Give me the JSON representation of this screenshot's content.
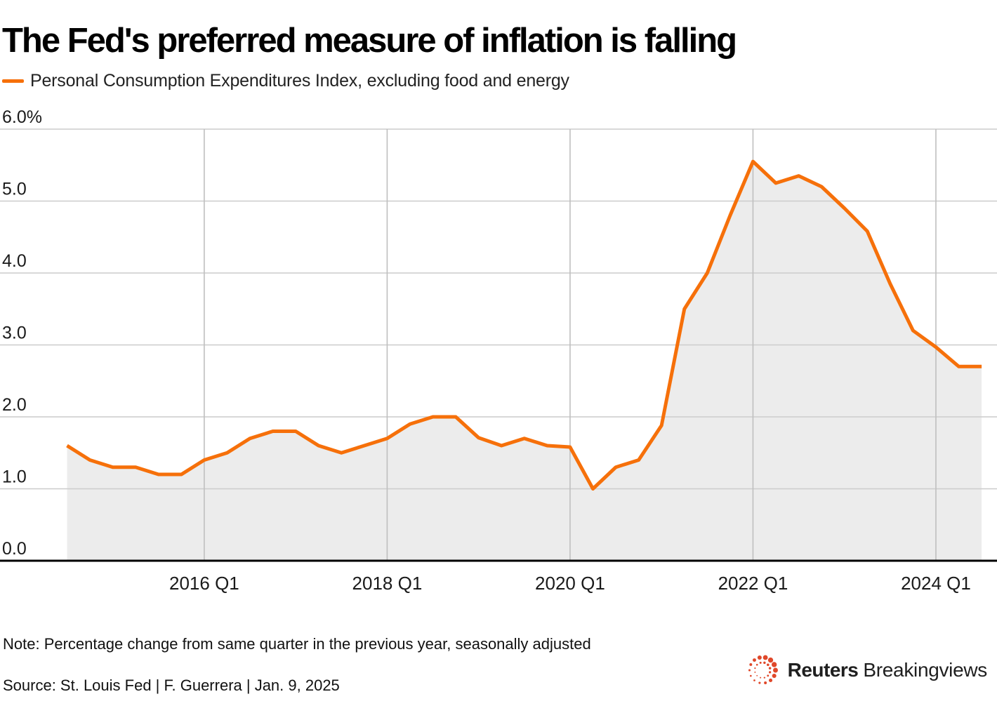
{
  "header": {
    "title": "The Fed's preferred measure of inflation is falling"
  },
  "legend": {
    "label": "Personal Consumption Expenditures Index, excluding food and energy",
    "swatch_color": "#F6700A"
  },
  "chart_data": {
    "type": "line",
    "title": "The Fed's preferred measure of inflation is falling",
    "series_name": "Personal Consumption Expenditures Index, excluding food and energy",
    "x": [
      "2014 Q3",
      "2014 Q4",
      "2015 Q1",
      "2015 Q2",
      "2015 Q3",
      "2015 Q4",
      "2016 Q1",
      "2016 Q2",
      "2016 Q3",
      "2016 Q4",
      "2017 Q1",
      "2017 Q2",
      "2017 Q3",
      "2017 Q4",
      "2018 Q1",
      "2018 Q2",
      "2018 Q3",
      "2018 Q4",
      "2019 Q1",
      "2019 Q2",
      "2019 Q3",
      "2019 Q4",
      "2020 Q1",
      "2020 Q2",
      "2020 Q3",
      "2020 Q4",
      "2021 Q1",
      "2021 Q2",
      "2021 Q3",
      "2021 Q4",
      "2022 Q1",
      "2022 Q2",
      "2022 Q3",
      "2022 Q4",
      "2023 Q1",
      "2023 Q2",
      "2023 Q3",
      "2023 Q4",
      "2024 Q1",
      "2024 Q2",
      "2024 Q3"
    ],
    "values": [
      1.6,
      1.4,
      1.3,
      1.3,
      1.2,
      1.2,
      1.4,
      1.5,
      1.7,
      1.8,
      1.8,
      1.6,
      1.5,
      1.6,
      1.7,
      1.9,
      2.0,
      2.0,
      1.71,
      1.6,
      1.7,
      1.6,
      1.58,
      1.0,
      1.3,
      1.4,
      1.88,
      3.5,
      4.0,
      4.8,
      5.55,
      5.25,
      5.35,
      5.2,
      4.9,
      4.58,
      3.85,
      3.2,
      2.97,
      2.7,
      2.7
    ],
    "ylim": [
      0,
      6
    ],
    "xlabel": "",
    "ylabel": "",
    "unit": "%",
    "grid": true,
    "legend_position": "top-left",
    "y_ticks": [
      {
        "label": "6.0%",
        "value": 6.0
      },
      {
        "label": "5.0",
        "value": 5.0
      },
      {
        "label": "4.0",
        "value": 4.0
      },
      {
        "label": "3.0",
        "value": 3.0
      },
      {
        "label": "2.0",
        "value": 2.0
      },
      {
        "label": "1.0",
        "value": 1.0
      },
      {
        "label": "0.0",
        "value": 0.0
      }
    ],
    "x_ticks": [
      {
        "label": "2016 Q1",
        "index": 6
      },
      {
        "label": "2018 Q1",
        "index": 14
      },
      {
        "label": "2020 Q1",
        "index": 22
      },
      {
        "label": "2022 Q1",
        "index": 30
      },
      {
        "label": "2024 Q1",
        "index": 38
      }
    ],
    "line_color": "#F6700A",
    "area_color": "#ECECEC",
    "hgrid_color": "#CCCCCC",
    "vgrid_color": "#BFBFBF",
    "axis_color": "#000000"
  },
  "footer": {
    "note": "Note: Percentage change from same quarter in the previous year, seasonally adjusted",
    "source": "Source: St. Louis Fed | F. Guerrera | Jan. 9, 2025",
    "logo": {
      "brand_bold": "Reuters",
      "brand_regular": "Breakingviews",
      "dot_color": "#E0482A"
    }
  }
}
